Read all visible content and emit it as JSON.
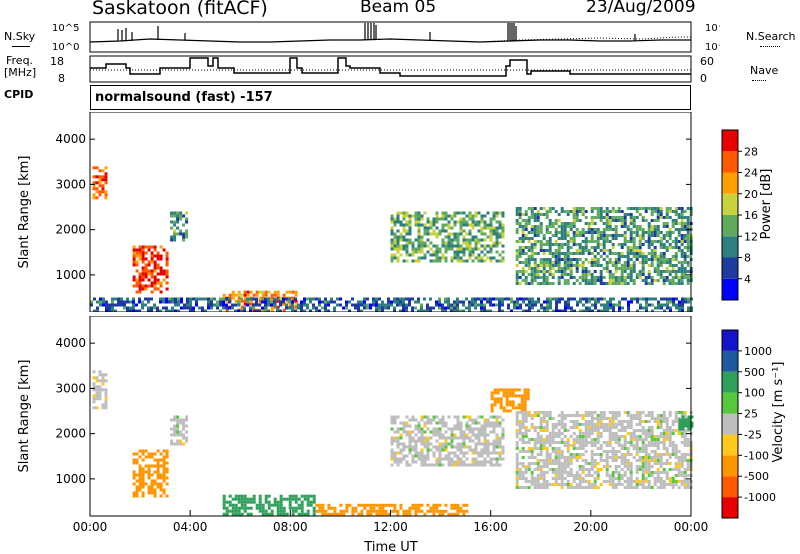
{
  "header": {
    "title": "Saskatoon (fitACF)",
    "beam": "Beam 05",
    "date": "23/Aug/2009"
  },
  "noise_panel": {
    "left_label": "N.Sky",
    "right_label": "N.Search",
    "ticks": [
      "10^5",
      "10^0"
    ]
  },
  "freq_panel": {
    "left_label_line1": "Freq.",
    "left_label_line2": "[MHz]",
    "left_ticks": [
      "18",
      "8"
    ],
    "right_label": "Nave",
    "right_ticks": [
      "60",
      "0"
    ]
  },
  "cpid_panel": {
    "label": "CPID",
    "value": "normalsound (fast) -157"
  },
  "colors": {
    "power_scale": [
      "#0000ff",
      "#1e3ca0",
      "#2f7f7f",
      "#5faa5f",
      "#c8d23c",
      "#ffa000",
      "#ff5a00",
      "#e60000"
    ],
    "velocity_scale": [
      "#e60000",
      "#ff5a00",
      "#ff9600",
      "#ffc81e",
      "#bebebe",
      "#55c83c",
      "#2da05a",
      "#1e5aa0",
      "#1414c8"
    ]
  },
  "chart_data": [
    {
      "type": "heatmap",
      "ylabel": "Slant Range [km]",
      "yticks": [
        "1000",
        "2000",
        "3000",
        "4000"
      ],
      "ylim": [
        180,
        4600
      ],
      "xlim": [
        0,
        24
      ],
      "xticks": [
        "00:00",
        "04:00",
        "08:00",
        "12:00",
        "16:00",
        "20:00",
        "00:00"
      ],
      "colorbar_label": "Power [dB]",
      "colorbar_ticks": [
        "4",
        "8",
        "12",
        "16",
        "20",
        "24",
        "28"
      ],
      "series": [
        {
          "name": "",
          "regions": [
            {
              "t0": 0.1,
              "t1": 0.6,
              "r0": 2700,
              "r1": 3400,
              "value": 26
            },
            {
              "t0": 1.7,
              "t1": 3.1,
              "r0": 600,
              "r1": 1650,
              "value": 28
            },
            {
              "t0": 3.2,
              "t1": 3.8,
              "r0": 1800,
              "r1": 2400,
              "value": 12
            },
            {
              "t0": 5.3,
              "t1": 8.2,
              "r0": 250,
              "r1": 650,
              "value": 24
            },
            {
              "t0": 12.0,
              "t1": 16.5,
              "r0": 1300,
              "r1": 2400,
              "value": 14
            },
            {
              "t0": 17.0,
              "t1": 24.0,
              "r0": 800,
              "r1": 2500,
              "value": 12
            },
            {
              "t0": 0.0,
              "t1": 24.0,
              "r0": 180,
              "r1": 500,
              "value": 8
            }
          ]
        }
      ]
    },
    {
      "type": "heatmap",
      "ylabel": "Slant Range [km]",
      "yticks": [
        "1000",
        "2000",
        "3000",
        "4000"
      ],
      "ylim": [
        180,
        4600
      ],
      "xlim": [
        0,
        24
      ],
      "xticks": [
        "00:00",
        "04:00",
        "08:00",
        "12:00",
        "16:00",
        "20:00",
        "00:00"
      ],
      "xlabel": "Time UT",
      "colorbar_label": "Velocity [m s⁻¹]",
      "colorbar_ticks": [
        "-1000",
        "-500",
        "-100",
        "-25",
        "25",
        "100",
        "500",
        "1000"
      ],
      "series": [
        {
          "name": "",
          "regions": [
            {
              "t0": 0.1,
              "t1": 0.6,
              "r0": 2600,
              "r1": 3400,
              "value": 0
            },
            {
              "t0": 1.7,
              "t1": 3.1,
              "r0": 600,
              "r1": 1650,
              "value": -150
            },
            {
              "t0": 3.2,
              "t1": 3.8,
              "r0": 1800,
              "r1": 2400,
              "value": 0
            },
            {
              "t0": 5.3,
              "t1": 9.0,
              "r0": 200,
              "r1": 650,
              "value": 150
            },
            {
              "t0": 9.0,
              "t1": 15.0,
              "r0": 200,
              "r1": 450,
              "value": -150
            },
            {
              "t0": 12.0,
              "t1": 16.5,
              "r0": 1300,
              "r1": 2400,
              "value": 0
            },
            {
              "t0": 16.0,
              "t1": 17.5,
              "r0": 2500,
              "r1": 3000,
              "value": -300
            },
            {
              "t0": 17.0,
              "t1": 24.0,
              "r0": 800,
              "r1": 2500,
              "value": 0
            },
            {
              "t0": 23.5,
              "t1": 24.0,
              "r0": 2100,
              "r1": 2400,
              "value": 150
            }
          ]
        }
      ]
    }
  ]
}
